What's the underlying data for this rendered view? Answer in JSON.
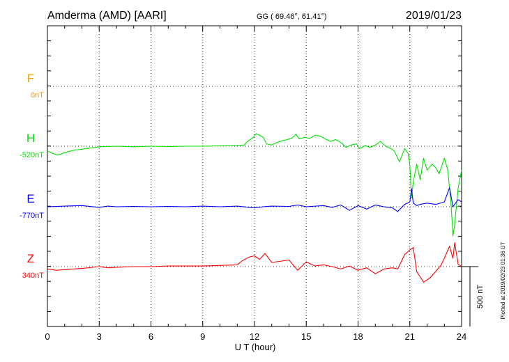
{
  "header": {
    "station": "Amderma (AMD)  [AARI]",
    "coords": "GG ( 69.46°,  61.41°)",
    "date": "2019/01/23"
  },
  "side_note": "Plotted at 2019/02/23 01:36 UT",
  "chart_data": {
    "type": "line",
    "xlabel": "U T (hour)",
    "xlim": [
      0,
      24
    ],
    "xticks": [
      "0",
      "3",
      "6",
      "9",
      "12",
      "15",
      "18",
      "21",
      "24"
    ],
    "scale_label": "500 nT",
    "series": [
      {
        "name": "F",
        "baseline_label": "0nT",
        "color": "#f0a000",
        "offset_nT": 0,
        "points": []
      },
      {
        "name": "H",
        "baseline_label": "-520nT",
        "color": "#00e000",
        "offset_nT": -520,
        "points": [
          [
            0,
            -40
          ],
          [
            0.3,
            -60
          ],
          [
            0.6,
            -75
          ],
          [
            0.9,
            -60
          ],
          [
            1.2,
            -45
          ],
          [
            1.5,
            -35
          ],
          [
            2,
            -25
          ],
          [
            2.5,
            -15
          ],
          [
            3,
            -5
          ],
          [
            4,
            0
          ],
          [
            5,
            -5
          ],
          [
            6,
            0
          ],
          [
            7,
            -3
          ],
          [
            8,
            0
          ],
          [
            9,
            0
          ],
          [
            10,
            3
          ],
          [
            11,
            5
          ],
          [
            11.4,
            10
          ],
          [
            11.6,
            40
          ],
          [
            11.9,
            70
          ],
          [
            12.1,
            105
          ],
          [
            12.3,
            90
          ],
          [
            12.5,
            75
          ],
          [
            12.7,
            20
          ],
          [
            13,
            10
          ],
          [
            13.3,
            30
          ],
          [
            13.6,
            45
          ],
          [
            13.9,
            55
          ],
          [
            14.2,
            70
          ],
          [
            14.4,
            100
          ],
          [
            14.6,
            60
          ],
          [
            14.9,
            75
          ],
          [
            15.2,
            65
          ],
          [
            15.5,
            90
          ],
          [
            15.8,
            85
          ],
          [
            16.1,
            60
          ],
          [
            16.4,
            40
          ],
          [
            16.7,
            55
          ],
          [
            16.9,
            40
          ],
          [
            17.1,
            20
          ],
          [
            17.3,
            -10
          ],
          [
            17.6,
            10
          ],
          [
            17.9,
            20
          ],
          [
            18.1,
            -20
          ],
          [
            18.4,
            5
          ],
          [
            18.7,
            -10
          ],
          [
            19,
            10
          ],
          [
            19.3,
            40
          ],
          [
            19.6,
            0
          ],
          [
            19.9,
            -20
          ],
          [
            20.1,
            -40
          ],
          [
            20.4,
            -130
          ],
          [
            20.7,
            -20
          ],
          [
            20.9,
            -60
          ],
          [
            21.0,
            -160
          ],
          [
            21.1,
            -430
          ],
          [
            21.2,
            -300
          ],
          [
            21.4,
            -150
          ],
          [
            21.6,
            -280
          ],
          [
            21.8,
            -100
          ],
          [
            22,
            -200
          ],
          [
            22.3,
            -150
          ],
          [
            22.5,
            -180
          ],
          [
            22.7,
            -230
          ],
          [
            23,
            -100
          ],
          [
            23.2,
            -200
          ],
          [
            23.4,
            -500
          ],
          [
            23.5,
            -750
          ],
          [
            23.6,
            -650
          ],
          [
            23.8,
            -350
          ],
          [
            24,
            -200
          ]
        ]
      },
      {
        "name": "E",
        "baseline_label": "-770nT",
        "color": "#0000ff",
        "offset_nT": -770,
        "points": [
          [
            0,
            0
          ],
          [
            1,
            5
          ],
          [
            2,
            10
          ],
          [
            3,
            -5
          ],
          [
            3.5,
            5
          ],
          [
            4,
            0
          ],
          [
            5,
            3
          ],
          [
            6,
            0
          ],
          [
            7,
            3
          ],
          [
            8,
            0
          ],
          [
            9,
            5
          ],
          [
            10,
            0
          ],
          [
            11,
            5
          ],
          [
            12,
            -10
          ],
          [
            12.5,
            0
          ],
          [
            13,
            5
          ],
          [
            14,
            3
          ],
          [
            14.5,
            15
          ],
          [
            15,
            0
          ],
          [
            16,
            10
          ],
          [
            16.5,
            -5
          ],
          [
            17,
            15
          ],
          [
            17.5,
            -30
          ],
          [
            18,
            10
          ],
          [
            18.5,
            -20
          ],
          [
            19,
            15
          ],
          [
            19.5,
            0
          ],
          [
            20,
            -10
          ],
          [
            20.3,
            -40
          ],
          [
            20.7,
            20
          ],
          [
            21,
            40
          ],
          [
            21.1,
            150
          ],
          [
            21.2,
            30
          ],
          [
            21.4,
            10
          ],
          [
            21.6,
            20
          ],
          [
            22,
            30
          ],
          [
            22.5,
            20
          ],
          [
            23,
            40
          ],
          [
            23.3,
            160
          ],
          [
            23.5,
            0
          ],
          [
            23.8,
            60
          ],
          [
            24,
            40
          ]
        ]
      },
      {
        "name": "Z",
        "baseline_label": "340nT",
        "color": "#ff0000",
        "offset_nT": 340,
        "points": [
          [
            0,
            -20
          ],
          [
            0.5,
            -30
          ],
          [
            1,
            -25
          ],
          [
            2,
            -15
          ],
          [
            3,
            0
          ],
          [
            3.5,
            -10
          ],
          [
            4,
            -5
          ],
          [
            5,
            0
          ],
          [
            6,
            0
          ],
          [
            7,
            5
          ],
          [
            8,
            5
          ],
          [
            9,
            5
          ],
          [
            10,
            10
          ],
          [
            11,
            15
          ],
          [
            11.3,
            50
          ],
          [
            11.7,
            80
          ],
          [
            12,
            90
          ],
          [
            12.3,
            60
          ],
          [
            12.6,
            110
          ],
          [
            13,
            35
          ],
          [
            14,
            55
          ],
          [
            14.5,
            -30
          ],
          [
            15,
            40
          ],
          [
            15.5,
            5
          ],
          [
            16,
            15
          ],
          [
            16.5,
            0
          ],
          [
            17,
            -20
          ],
          [
            17.5,
            5
          ],
          [
            18,
            -30
          ],
          [
            18.5,
            -10
          ],
          [
            19,
            -60
          ],
          [
            19.5,
            -20
          ],
          [
            20,
            -10
          ],
          [
            20.3,
            -20
          ],
          [
            20.7,
            100
          ],
          [
            21,
            140
          ],
          [
            21.2,
            160
          ],
          [
            21.4,
            -40
          ],
          [
            21.8,
            -130
          ],
          [
            22.2,
            -90
          ],
          [
            22.5,
            -40
          ],
          [
            22.8,
            10
          ],
          [
            23,
            70
          ],
          [
            23.3,
            170
          ],
          [
            23.5,
            70
          ],
          [
            23.6,
            200
          ],
          [
            23.8,
            20
          ],
          [
            24,
            0
          ]
        ]
      }
    ]
  }
}
